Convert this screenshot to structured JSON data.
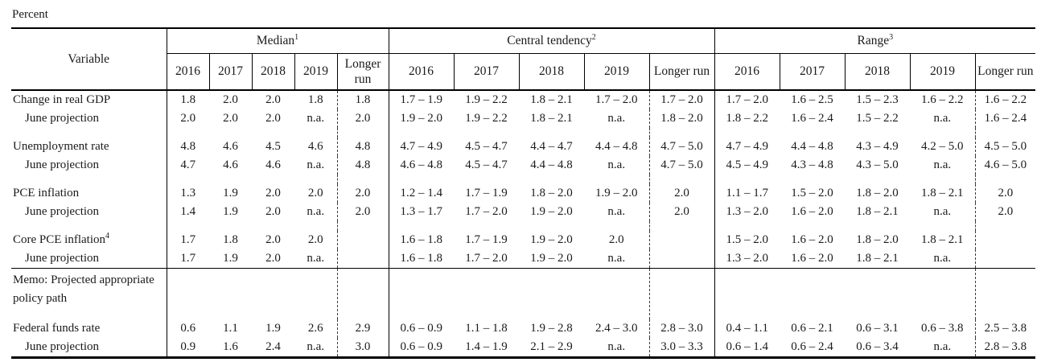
{
  "unit_label": "Percent",
  "chart_data": {
    "type": "table",
    "variable_header": "Variable",
    "groups": [
      {
        "label": "Median",
        "sup": "1"
      },
      {
        "label": "Central tendency",
        "sup": "2"
      },
      {
        "label": "Range",
        "sup": "3"
      }
    ],
    "years": [
      "2016",
      "2017",
      "2018",
      "2019"
    ],
    "longer_run": "Longer run",
    "na_text": "n.a.",
    "rows": [
      {
        "kind": "data",
        "label": "Change in real GDP",
        "indent": false,
        "cells": [
          "1.8",
          "2.0",
          "2.0",
          "1.8",
          "1.8",
          "1.7 – 1.9",
          "1.9 – 2.2",
          "1.8 – 2.1",
          "1.7 – 2.0",
          "1.7 – 2.0",
          "1.7 – 2.0",
          "1.6 – 2.5",
          "1.5 – 2.3",
          "1.6 – 2.2",
          "1.6 – 2.2"
        ]
      },
      {
        "kind": "data",
        "label": "June projection",
        "indent": true,
        "cells": [
          "2.0",
          "2.0",
          "2.0",
          "n.a.",
          "2.0",
          "1.9 – 2.0",
          "1.9 – 2.2",
          "1.8 – 2.1",
          "n.a.",
          "1.8 – 2.0",
          "1.8 – 2.2",
          "1.6 – 2.4",
          "1.5 – 2.2",
          "n.a.",
          "1.6 – 2.4"
        ]
      },
      {
        "kind": "spacer"
      },
      {
        "kind": "data",
        "label": "Unemployment rate",
        "indent": false,
        "cells": [
          "4.8",
          "4.6",
          "4.5",
          "4.6",
          "4.8",
          "4.7 – 4.9",
          "4.5 – 4.7",
          "4.4 – 4.7",
          "4.4 – 4.8",
          "4.7 – 5.0",
          "4.7 – 4.9",
          "4.4 – 4.8",
          "4.3 – 4.9",
          "4.2 – 5.0",
          "4.5 – 5.0"
        ]
      },
      {
        "kind": "data",
        "label": "June projection",
        "indent": true,
        "cells": [
          "4.7",
          "4.6",
          "4.6",
          "n.a.",
          "4.8",
          "4.6 – 4.8",
          "4.5 – 4.7",
          "4.4 – 4.8",
          "n.a.",
          "4.7 – 5.0",
          "4.5 – 4.9",
          "4.3 – 4.8",
          "4.3 – 5.0",
          "n.a.",
          "4.6 – 5.0"
        ]
      },
      {
        "kind": "spacer"
      },
      {
        "kind": "data",
        "label": "PCE inflation",
        "indent": false,
        "cells": [
          "1.3",
          "1.9",
          "2.0",
          "2.0",
          "2.0",
          "1.2 – 1.4",
          "1.7 – 1.9",
          "1.8 – 2.0",
          "1.9 – 2.0",
          "2.0",
          "1.1 – 1.7",
          "1.5 – 2.0",
          "1.8 – 2.0",
          "1.8 – 2.1",
          "2.0"
        ]
      },
      {
        "kind": "data",
        "label": "June projection",
        "indent": true,
        "cells": [
          "1.4",
          "1.9",
          "2.0",
          "n.a.",
          "2.0",
          "1.3 – 1.7",
          "1.7 – 2.0",
          "1.9 – 2.0",
          "n.a.",
          "2.0",
          "1.3 – 2.0",
          "1.6 – 2.0",
          "1.8 – 2.1",
          "n.a.",
          "2.0"
        ]
      },
      {
        "kind": "spacer"
      },
      {
        "kind": "data",
        "label": "Core PCE inflation",
        "sup": "4",
        "indent": false,
        "cells": [
          "1.7",
          "1.8",
          "2.0",
          "2.0",
          "",
          "1.6 – 1.8",
          "1.7 – 1.9",
          "1.9 – 2.0",
          "2.0",
          "",
          "1.5 – 2.0",
          "1.6 – 2.0",
          "1.8 – 2.0",
          "1.8 – 2.1",
          ""
        ]
      },
      {
        "kind": "data",
        "label": "June projection",
        "indent": true,
        "cells": [
          "1.7",
          "1.9",
          "2.0",
          "n.a.",
          "",
          "1.6 – 1.8",
          "1.7 – 2.0",
          "1.9 – 2.0",
          "n.a.",
          "",
          "1.3 – 2.0",
          "1.6 – 2.0",
          "1.8 – 2.1",
          "n.a.",
          ""
        ]
      },
      {
        "kind": "memo",
        "rule_above": true,
        "label": "Memo: Projected appropriate policy path",
        "cells": [
          "",
          "",
          "",
          "",
          "",
          "",
          "",
          "",
          "",
          "",
          "",
          "",
          "",
          "",
          ""
        ]
      },
      {
        "kind": "data",
        "label": "Federal funds rate",
        "indent": false,
        "cells": [
          "0.6",
          "1.1",
          "1.9",
          "2.6",
          "2.9",
          "0.6 – 0.9",
          "1.1 – 1.8",
          "1.9 – 2.8",
          "2.4 – 3.0",
          "2.8 – 3.0",
          "0.4 – 1.1",
          "0.6 – 2.1",
          "0.6 – 3.1",
          "0.6 – 3.8",
          "2.5 – 3.8"
        ]
      },
      {
        "kind": "data",
        "label": "June projection",
        "indent": true,
        "cells": [
          "0.9",
          "1.6",
          "2.4",
          "n.a.",
          "3.0",
          "0.6 – 0.9",
          "1.4 – 1.9",
          "2.1 – 2.9",
          "n.a.",
          "3.0 – 3.3",
          "0.6 – 1.4",
          "0.6 – 2.4",
          "0.6 – 3.4",
          "n.a.",
          "2.8 – 3.8"
        ]
      }
    ]
  }
}
